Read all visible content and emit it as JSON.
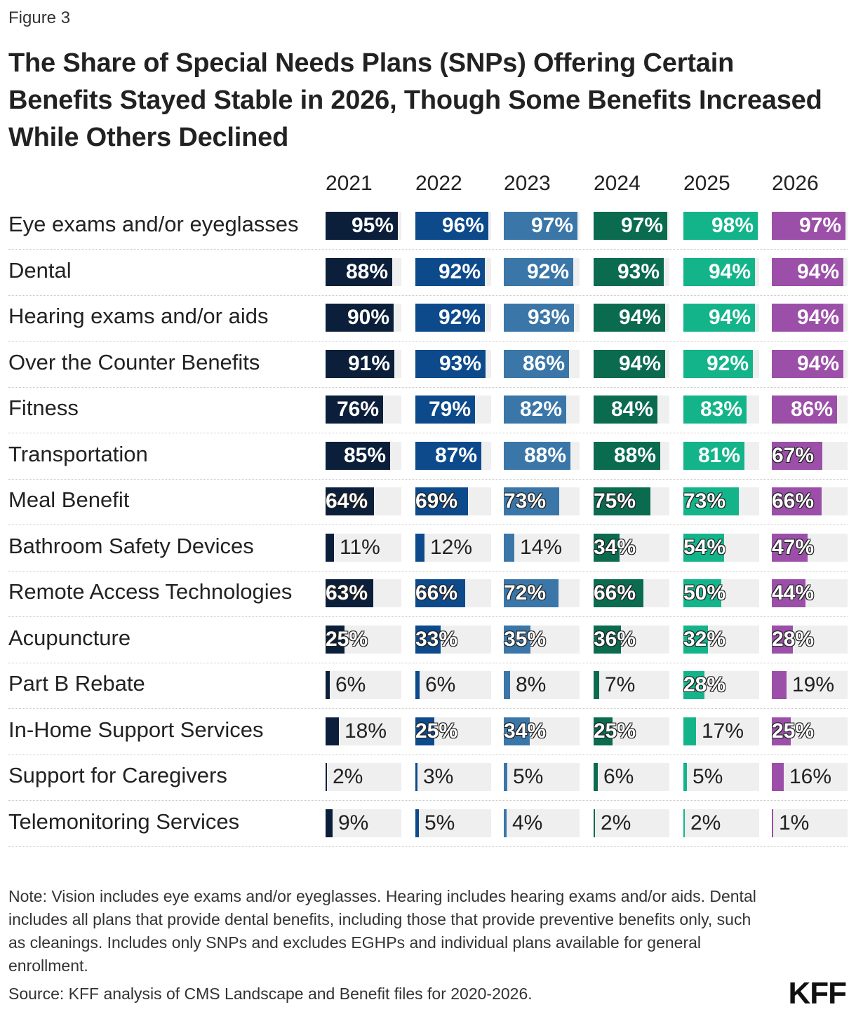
{
  "figure_label": "Figure 3",
  "title": "The Share of Special Needs Plans (SNPs) Offering Certain Benefits Stayed Stable in 2026, Though Some Benefits Increased While Others Declined",
  "note": "Note: Vision includes eye exams and/or eyeglasses. Hearing includes hearing exams and/or aids. Dental includes all plans that provide dental benefits, including those that provide preventive benefits only, such as cleanings. Includes only SNPs and excludes EGHPs and individual plans available for general enrollment.",
  "source": "Source: KFF analysis of CMS Landscape and Benefit files for 2020-2026.",
  "logo": "KFF",
  "colors": {
    "2021": "#0b1f3a",
    "2022": "#0d4a8b",
    "2023": "#3a76a8",
    "2024": "#0a6b4f",
    "2025": "#14b48a",
    "2026": "#9b4fa8",
    "track": "#efefef"
  },
  "chart_data": {
    "type": "table",
    "columns": [
      "2021",
      "2022",
      "2023",
      "2024",
      "2025",
      "2026"
    ],
    "unit": "%",
    "rows": [
      {
        "label": "Eye exams and/or eyeglasses",
        "values": [
          95,
          96,
          97,
          97,
          98,
          97
        ]
      },
      {
        "label": "Dental",
        "values": [
          88,
          92,
          92,
          93,
          94,
          94
        ]
      },
      {
        "label": "Hearing exams and/or aids",
        "values": [
          90,
          92,
          93,
          94,
          94,
          94
        ]
      },
      {
        "label": "Over the Counter Benefits",
        "values": [
          91,
          93,
          86,
          94,
          92,
          94
        ]
      },
      {
        "label": "Fitness",
        "values": [
          76,
          79,
          82,
          84,
          83,
          86
        ]
      },
      {
        "label": "Transportation",
        "values": [
          85,
          87,
          88,
          88,
          81,
          67
        ]
      },
      {
        "label": "Meal Benefit",
        "values": [
          64,
          69,
          73,
          75,
          73,
          66
        ]
      },
      {
        "label": "Bathroom Safety Devices",
        "values": [
          11,
          12,
          14,
          34,
          54,
          47
        ]
      },
      {
        "label": "Remote Access Technologies",
        "values": [
          63,
          66,
          72,
          66,
          50,
          44
        ]
      },
      {
        "label": "Acupuncture",
        "values": [
          25,
          33,
          35,
          36,
          32,
          28
        ]
      },
      {
        "label": "Part B Rebate",
        "values": [
          6,
          6,
          8,
          7,
          28,
          19
        ]
      },
      {
        "label": "In-Home Support Services",
        "values": [
          18,
          25,
          34,
          25,
          17,
          25
        ]
      },
      {
        "label": "Support for Caregivers",
        "values": [
          2,
          3,
          5,
          6,
          5,
          16
        ]
      },
      {
        "label": "Telemonitoring Services",
        "values": [
          9,
          5,
          4,
          2,
          2,
          1
        ]
      }
    ]
  }
}
